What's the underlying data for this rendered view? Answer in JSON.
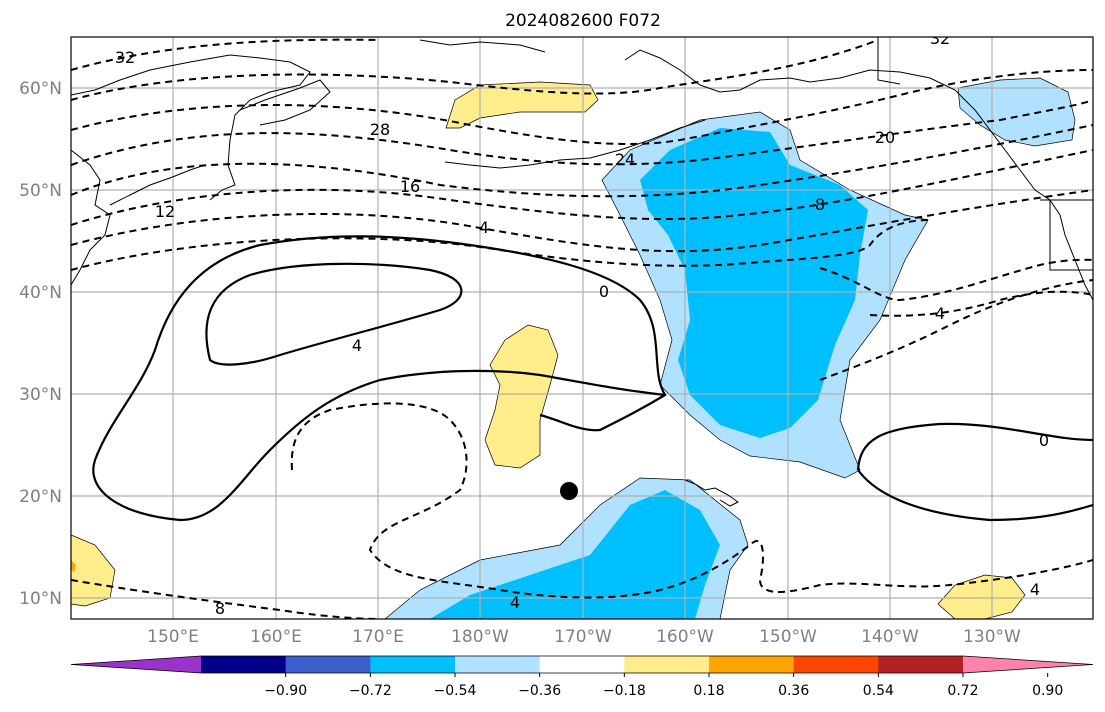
{
  "title": "2024082600 F072",
  "map": {
    "lat_labels": [
      "60°N",
      "50°N",
      "40°N",
      "30°N",
      "20°N",
      "10°N"
    ],
    "lon_labels": [
      "150°E",
      "160°E",
      "170°E",
      "180°W",
      "170°W",
      "160°W",
      "150°W",
      "140°W",
      "130°W"
    ],
    "contour_labels": [
      "32",
      "28",
      "24",
      "20",
      "16",
      "12",
      "8",
      "4",
      "0",
      "4",
      "0",
      "4",
      "8",
      "4",
      "4",
      "32"
    ],
    "marker": "storm-center-dot"
  },
  "colorbar": {
    "tick_labels": [
      "−0.90",
      "−0.72",
      "−0.54",
      "−0.36",
      "−0.18",
      "0.18",
      "0.36",
      "0.54",
      "0.72",
      "0.90"
    ],
    "colors": [
      "#9933cc",
      "#00008b",
      "#3a5fcd",
      "#00bfff",
      "#b0e2ff",
      "#ffffff",
      "#ffec8b",
      "#ffa500",
      "#ff4500",
      "#b22222",
      "#ff82ab"
    ]
  },
  "fill_colors": {
    "light_blue": "#b0e2ff",
    "blue": "#00bfff",
    "yellow": "#ffec8b",
    "orange": "#ffa500"
  }
}
